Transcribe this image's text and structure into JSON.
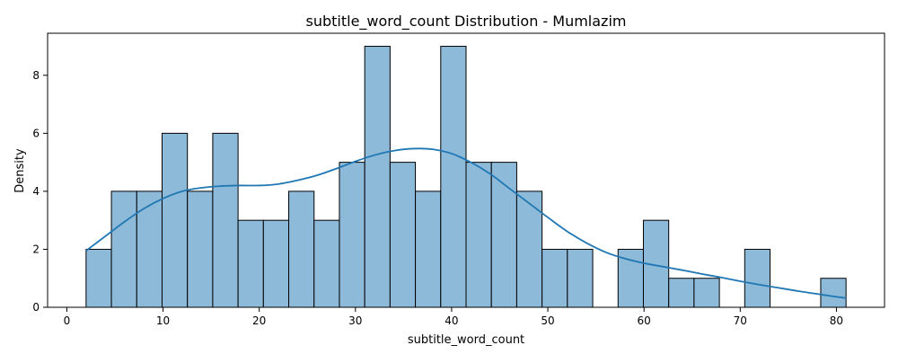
{
  "chart_data": {
    "type": "bar",
    "title": "subtitle_word_count Distribution - Mumlazim",
    "xlabel": "subtitle_word_count",
    "ylabel": "Density",
    "xlim": [
      -2,
      85
    ],
    "ylim": [
      0,
      9.45
    ],
    "x_ticks": [
      0,
      10,
      20,
      30,
      40,
      50,
      60,
      70,
      80
    ],
    "y_ticks": [
      0,
      2,
      4,
      6,
      8
    ],
    "grid": false,
    "bin_range": [
      2,
      81
    ],
    "bin_count": 30,
    "values": [
      2,
      4,
      4,
      6,
      4,
      6,
      3,
      3,
      4,
      3,
      5,
      9,
      5,
      4,
      9,
      5,
      5,
      4,
      2,
      2,
      0,
      2,
      3,
      1,
      1,
      0,
      2,
      0,
      0,
      1
    ],
    "kde": {
      "x": [
        2,
        4,
        6,
        8,
        10,
        12,
        14,
        16,
        18,
        20,
        22,
        24,
        26,
        28,
        30,
        32,
        34,
        36,
        38,
        40,
        42,
        44,
        46,
        48,
        50,
        52,
        54,
        56,
        58,
        60,
        62,
        64,
        66,
        68,
        70,
        72,
        74,
        76,
        78,
        80,
        81
      ],
      "y": [
        1.95,
        2.45,
        2.95,
        3.4,
        3.75,
        4.0,
        4.12,
        4.18,
        4.2,
        4.2,
        4.25,
        4.38,
        4.55,
        4.78,
        5.03,
        5.25,
        5.4,
        5.47,
        5.45,
        5.3,
        5.0,
        4.6,
        4.1,
        3.6,
        3.1,
        2.62,
        2.22,
        1.9,
        1.68,
        1.52,
        1.4,
        1.28,
        1.15,
        1.03,
        0.9,
        0.78,
        0.67,
        0.56,
        0.46,
        0.36,
        0.32
      ]
    },
    "colors": {
      "bar_fill": "#8ebad9",
      "bar_edge": "#000000",
      "kde_line": "#1f77b4"
    }
  }
}
